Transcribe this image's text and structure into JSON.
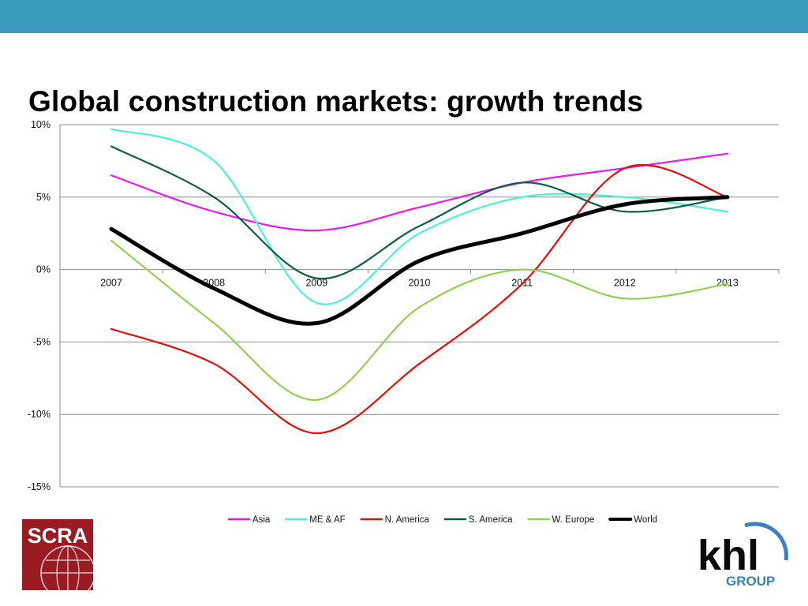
{
  "slide": {
    "title": "Global construction markets: growth trends"
  },
  "logos": {
    "left_text": "SCRA",
    "right_text": "khl",
    "right_subtext": "GROUP"
  },
  "chart_data": {
    "type": "line",
    "title": "",
    "xlabel": "",
    "ylabel": "",
    "categories": [
      "2007",
      "2008",
      "2009",
      "2010",
      "2011",
      "2012",
      "2013"
    ],
    "y_ticks": [
      "10%",
      "5%",
      "0%",
      "-5%",
      "-10%",
      "-15%"
    ],
    "ylim": [
      -15,
      10
    ],
    "grid": true,
    "smooth": true,
    "legend_position": "bottom",
    "series": [
      {
        "name": "Asia",
        "color": "#ea1bea",
        "width": 2.2,
        "values": [
          6.5,
          4.0,
          2.7,
          4.3,
          6.0,
          7.0,
          8.0
        ]
      },
      {
        "name": "ME & AF",
        "color": "#4ef0d2",
        "width": 2.2,
        "values": [
          9.7,
          7.5,
          -2.3,
          2.5,
          5.0,
          5.0,
          4.0
        ]
      },
      {
        "name": "N. America",
        "color": "#e0100c",
        "width": 2.2,
        "values": [
          -4.1,
          -6.5,
          -11.3,
          -6.5,
          -1.0,
          7.0,
          5.0
        ]
      },
      {
        "name": "S. America",
        "color": "#0d5e48",
        "width": 2.2,
        "values": [
          8.5,
          5.0,
          -0.6,
          3.0,
          6.0,
          4.0,
          5.0
        ]
      },
      {
        "name": "W. Europe",
        "color": "#92d050",
        "width": 2.2,
        "values": [
          2.0,
          -3.7,
          -9.0,
          -2.6,
          0.0,
          -2.0,
          -1.0
        ]
      },
      {
        "name": "World",
        "color": "#000000",
        "width": 5,
        "values": [
          2.8,
          -1.3,
          -3.7,
          0.6,
          2.5,
          4.5,
          5.0
        ]
      }
    ]
  }
}
